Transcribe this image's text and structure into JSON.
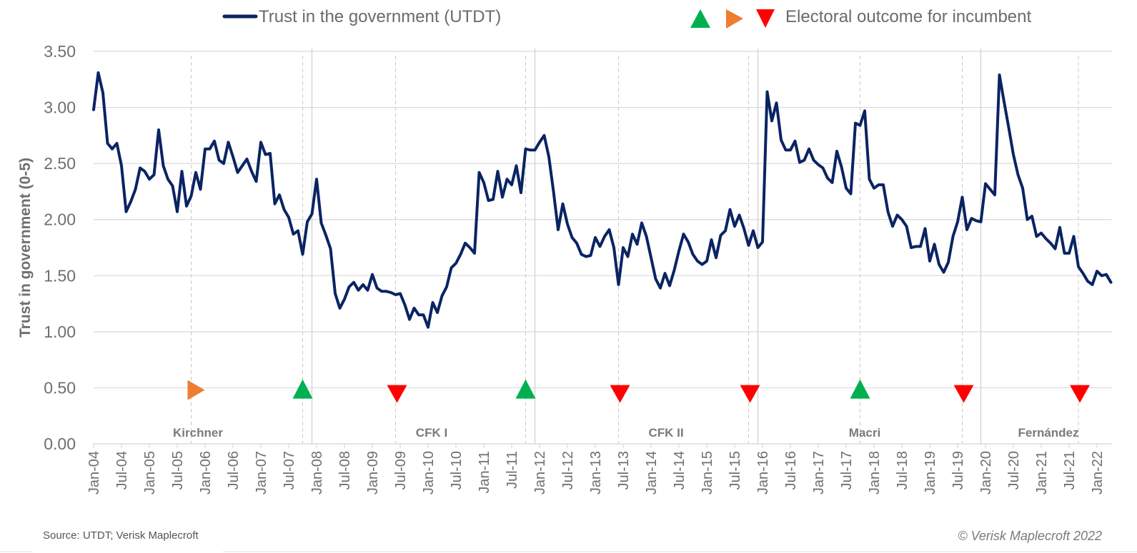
{
  "colors": {
    "line": "#0a2463",
    "grid": "#d9d9d9",
    "win": "#00b050",
    "neutral": "#ed7d31",
    "loss": "#ff0000",
    "text": "#6f6f6f"
  },
  "legend": {
    "series_label": "Trust in the government (UTDT)",
    "markers_label": "Electoral outcome for incumbent"
  },
  "source": "Source: UTDT; Verisk Maplecroft",
  "copyright": "© Verisk Maplecroft 2022",
  "chart_data": {
    "type": "line",
    "title": "",
    "xlabel": "",
    "ylabel": "Trust in government (0-5)",
    "ylim": [
      0,
      3.5
    ],
    "yticks": [
      "0.00",
      "0.50",
      "1.00",
      "1.50",
      "2.00",
      "2.50",
      "3.00",
      "3.50"
    ],
    "grid": true,
    "legend_position": "top",
    "start_month": "Jan-04",
    "x_tick_labels": [
      "Jan-04",
      "Jul-04",
      "Jan-05",
      "Jul-05",
      "Jan-06",
      "Jul-06",
      "Jan-07",
      "Jul-07",
      "Jan-08",
      "Jul-08",
      "Jan-09",
      "Jul-09",
      "Jan-10",
      "Jul-10",
      "Jan-11",
      "Jul-11",
      "Jan-12",
      "Jul-12",
      "Jan-13",
      "Jul-13",
      "Jan-14",
      "Jul-14",
      "Jan-15",
      "Jul-15",
      "Jan-16",
      "Jul-16",
      "Jan-17",
      "Jul-17",
      "Jan-18",
      "Jul-18",
      "Jan-19",
      "Jul-19",
      "Jan-20",
      "Jul-20",
      "Jan-21",
      "Jul-21",
      "Jan-22"
    ],
    "series": [
      {
        "name": "Trust in the government (UTDT)",
        "frequency": "monthly",
        "values": [
          2.98,
          3.31,
          3.13,
          2.68,
          2.63,
          2.68,
          2.48,
          2.07,
          2.16,
          2.27,
          2.46,
          2.43,
          2.36,
          2.4,
          2.8,
          2.48,
          2.36,
          2.3,
          2.07,
          2.43,
          2.12,
          2.21,
          2.42,
          2.27,
          2.63,
          2.63,
          2.7,
          2.53,
          2.5,
          2.69,
          2.56,
          2.42,
          2.48,
          2.54,
          2.43,
          2.34,
          2.69,
          2.58,
          2.59,
          2.14,
          2.22,
          2.09,
          2.02,
          1.87,
          1.9,
          1.69,
          1.98,
          2.05,
          2.36,
          1.97,
          1.86,
          1.74,
          1.34,
          1.21,
          1.29,
          1.4,
          1.44,
          1.37,
          1.42,
          1.37,
          1.51,
          1.39,
          1.36,
          1.36,
          1.35,
          1.33,
          1.34,
          1.24,
          1.11,
          1.21,
          1.15,
          1.15,
          1.04,
          1.26,
          1.17,
          1.32,
          1.4,
          1.57,
          1.61,
          1.69,
          1.79,
          1.75,
          1.7,
          2.42,
          2.33,
          2.17,
          2.18,
          2.43,
          2.2,
          2.36,
          2.31,
          2.48,
          2.24,
          2.63,
          2.62,
          2.62,
          2.69,
          2.75,
          2.56,
          2.25,
          1.91,
          2.14,
          1.96,
          1.84,
          1.79,
          1.69,
          1.67,
          1.68,
          1.84,
          1.76,
          1.85,
          1.91,
          1.75,
          1.42,
          1.75,
          1.67,
          1.87,
          1.78,
          1.97,
          1.85,
          1.66,
          1.47,
          1.39,
          1.52,
          1.41,
          1.55,
          1.72,
          1.87,
          1.8,
          1.69,
          1.63,
          1.6,
          1.63,
          1.82,
          1.66,
          1.86,
          1.9,
          2.09,
          1.94,
          2.04,
          1.92,
          1.77,
          1.9,
          1.75,
          1.8,
          3.14,
          2.88,
          3.04,
          2.71,
          2.62,
          2.62,
          2.7,
          2.51,
          2.53,
          2.63,
          2.53,
          2.49,
          2.46,
          2.37,
          2.33,
          2.61,
          2.47,
          2.28,
          2.23,
          2.86,
          2.84,
          2.97,
          2.36,
          2.28,
          2.31,
          2.31,
          2.07,
          1.94,
          2.04,
          2.0,
          1.94,
          1.75,
          1.76,
          1.76,
          1.92,
          1.63,
          1.78,
          1.6,
          1.53,
          1.62,
          1.85,
          1.98,
          2.2,
          1.91,
          2.01,
          1.99,
          1.98,
          2.32,
          2.27,
          2.22,
          3.29,
          3.05,
          2.82,
          2.58,
          2.4,
          2.28,
          2.0,
          2.03,
          1.85,
          1.88,
          1.83,
          1.79,
          1.74,
          1.93,
          1.7,
          1.7,
          1.85,
          1.58,
          1.52,
          1.45,
          1.42,
          1.54,
          1.5,
          1.51,
          1.44
        ]
      }
    ],
    "period_labels": [
      "Kirchner",
      "CFK I",
      "CFK II",
      "Macri",
      "Fernández"
    ],
    "term_boundaries": [
      "Dec-07",
      "Dec-11",
      "Dec-15",
      "Dec-19"
    ],
    "election_dates": [
      "Oct-05",
      "Oct-07",
      "Jun-09",
      "Oct-11",
      "Jun-13",
      "Oct-15",
      "Oct-17",
      "Aug-19",
      "Sep-21"
    ],
    "electoral_outcomes": [
      {
        "date": "Oct-05",
        "outcome": "neutral",
        "value": 0.48
      },
      {
        "date": "Oct-07",
        "outcome": "win",
        "value": 0.48
      },
      {
        "date": "Jun-09",
        "outcome": "loss",
        "value": 0.48
      },
      {
        "date": "Oct-11",
        "outcome": "win",
        "value": 0.48
      },
      {
        "date": "Jun-13",
        "outcome": "loss",
        "value": 0.48
      },
      {
        "date": "Oct-15",
        "outcome": "loss",
        "value": 0.48
      },
      {
        "date": "Oct-17",
        "outcome": "win",
        "value": 0.48
      },
      {
        "date": "Aug-19",
        "outcome": "loss",
        "value": 0.48
      },
      {
        "date": "Sep-21",
        "outcome": "loss",
        "value": 0.48
      }
    ]
  }
}
